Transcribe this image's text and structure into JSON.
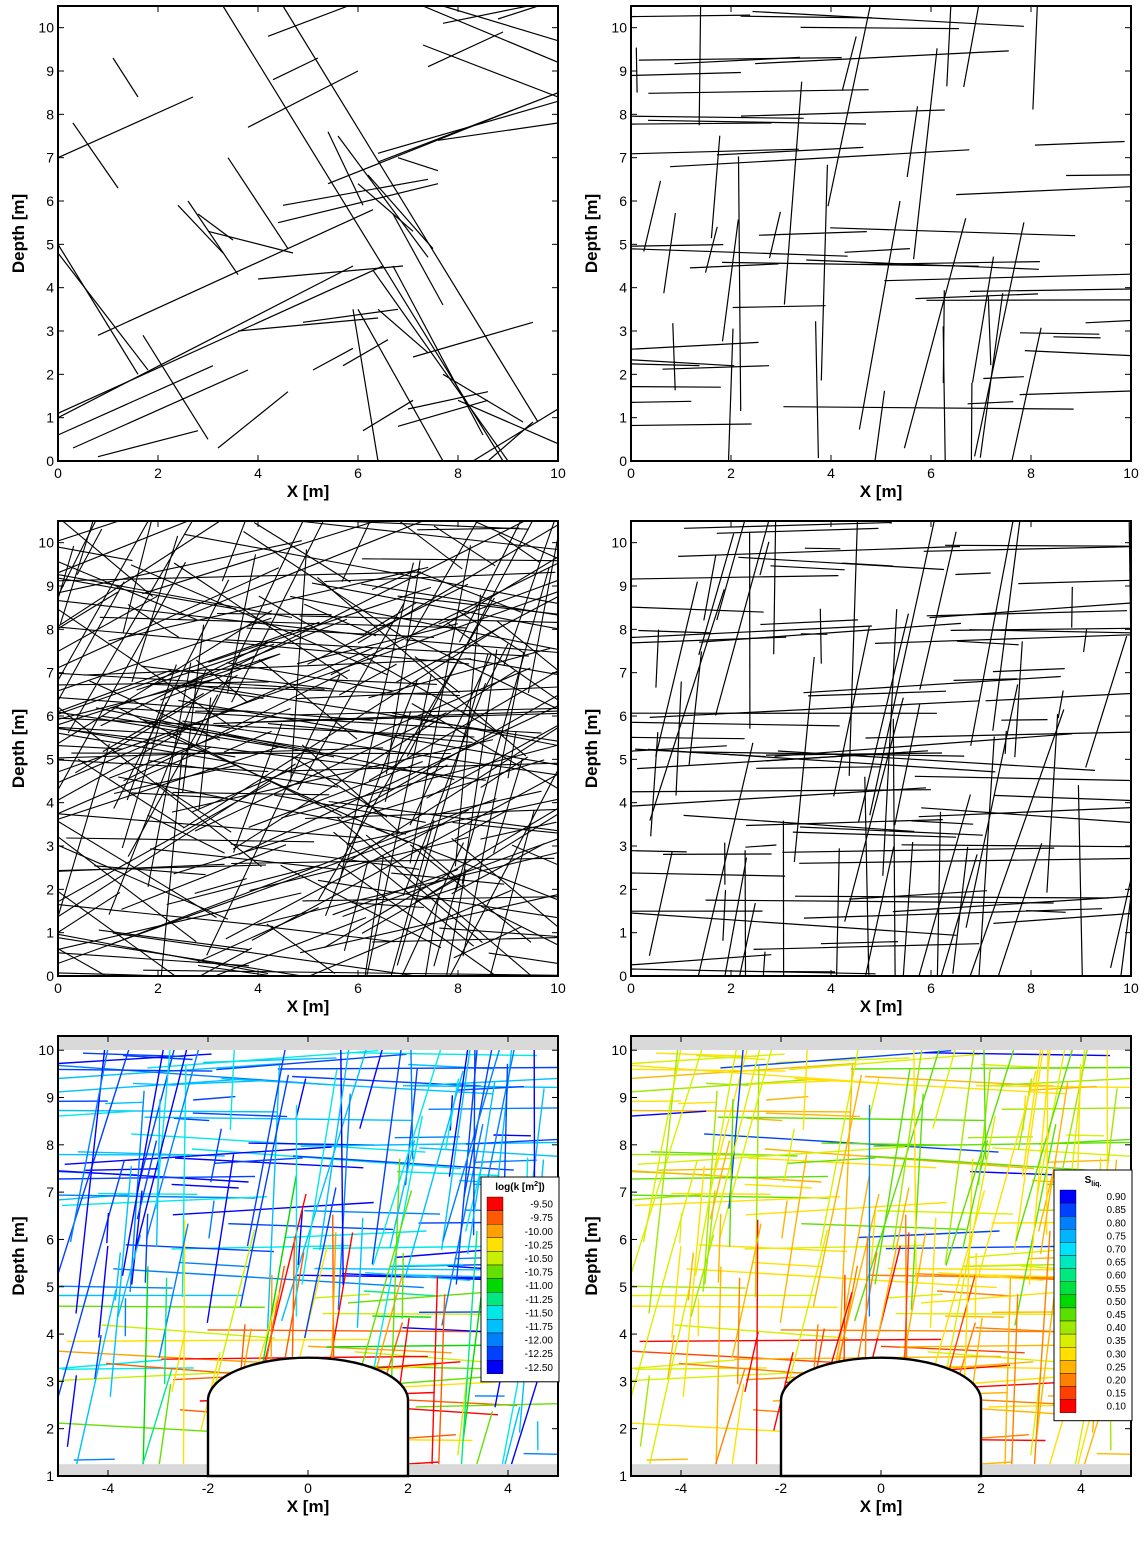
{
  "chart_data": [
    {
      "id": "p1",
      "type": "line",
      "xlabel": "X [m]",
      "ylabel": "Depth [m]",
      "xlim": [
        0,
        10
      ],
      "ylim": [
        0,
        10.5
      ],
      "xticks": [
        0,
        2,
        4,
        6,
        8,
        10
      ],
      "yticks": [
        0,
        1,
        2,
        3,
        4,
        5,
        6,
        7,
        8,
        9,
        10
      ],
      "segments": [
        [
          3.3,
          10.5,
          8.9,
          0
        ],
        [
          4.5,
          10.5,
          9.6,
          0.9
        ],
        [
          4.2,
          9.8,
          5.8,
          10.5
        ],
        [
          3.8,
          10.5,
          4.4,
          10.5
        ],
        [
          5.9,
          10.5,
          7.3,
          10.5
        ],
        [
          7.3,
          10.5,
          10,
          9.2
        ],
        [
          7.7,
          10.5,
          10,
          9.7
        ],
        [
          0,
          7,
          2.7,
          8.4
        ],
        [
          1.1,
          9.3,
          1.6,
          8.4
        ],
        [
          0.3,
          7.8,
          1.2,
          6.3
        ],
        [
          3.8,
          7.7,
          6,
          9
        ],
        [
          4.3,
          8.8,
          5.2,
          9.3
        ],
        [
          7.4,
          9.1,
          8.9,
          9.9
        ],
        [
          7.3,
          9.6,
          10,
          8.4
        ],
        [
          7.7,
          10.1,
          9.4,
          10.5
        ],
        [
          5.4,
          7.6,
          6.1,
          5.9
        ],
        [
          6.4,
          7.1,
          10,
          8.3
        ],
        [
          6.4,
          6.9,
          10,
          8.5
        ],
        [
          5.4,
          6.4,
          9.1,
          8.1
        ],
        [
          6.8,
          7,
          7.6,
          6.7
        ],
        [
          7.6,
          7.4,
          10,
          7.8
        ],
        [
          4.4,
          5.5,
          7.6,
          6.4
        ],
        [
          4.5,
          5.9,
          7.4,
          6.5
        ],
        [
          6,
          6.4,
          7.1,
          5.3
        ],
        [
          6.2,
          6.6,
          7.5,
          4.9
        ],
        [
          5.6,
          7.5,
          7.4,
          4.7
        ],
        [
          3.4,
          7,
          4.6,
          4.9
        ],
        [
          6.7,
          5.7,
          7.7,
          3.6
        ],
        [
          2.4,
          5.9,
          3.3,
          4.8
        ],
        [
          2.6,
          6,
          3.6,
          4.3
        ],
        [
          2.8,
          5.7,
          3.5,
          5.1
        ],
        [
          0.8,
          2.9,
          6.3,
          5.8
        ],
        [
          3,
          5.3,
          4.7,
          4.8
        ],
        [
          0,
          5,
          1.6,
          2
        ],
        [
          0,
          4.8,
          1.8,
          2.1
        ],
        [
          0,
          1,
          5.9,
          4.5
        ],
        [
          0,
          1.1,
          6.5,
          4.5
        ],
        [
          0,
          0.6,
          3.1,
          2.2
        ],
        [
          0.3,
          0.3,
          3.8,
          2.1
        ],
        [
          3.6,
          3,
          6.4,
          3.3
        ],
        [
          6.3,
          4.4,
          9,
          0
        ],
        [
          6.7,
          4.5,
          8.5,
          0.6
        ],
        [
          6,
          3.5,
          7.7,
          0
        ],
        [
          5.9,
          3.5,
          6.4,
          0
        ],
        [
          4,
          4.2,
          6.9,
          4.5
        ],
        [
          6.4,
          3.5,
          7.4,
          2.5
        ],
        [
          5.1,
          2.1,
          5.9,
          2.6
        ],
        [
          5.7,
          2.2,
          6.6,
          2.8
        ],
        [
          3.2,
          0.3,
          4.6,
          1.6
        ],
        [
          6.1,
          0.7,
          7.1,
          1.4
        ],
        [
          7,
          1.2,
          8.6,
          1.6
        ],
        [
          8,
          1.4,
          10,
          0.4
        ],
        [
          6.8,
          0.8,
          8.6,
          1.4
        ],
        [
          7.7,
          2,
          9.3,
          0.9
        ],
        [
          7.1,
          2.4,
          9.5,
          3.2
        ],
        [
          1.7,
          2.9,
          3,
          0.5
        ],
        [
          8.6,
          0,
          9.5,
          0.9
        ],
        [
          4.9,
          3.2,
          6.8,
          3.5
        ],
        [
          8.3,
          0,
          10,
          1.2
        ],
        [
          0.8,
          0.1,
          2.8,
          0.7
        ],
        [
          8.8,
          10.2,
          9.6,
          10.5
        ]
      ]
    },
    {
      "id": "p2",
      "type": "line",
      "seed": 201,
      "xlabel": "X [m]",
      "ylabel": "Depth [m]",
      "xlim": [
        0,
        10
      ],
      "ylim": [
        0,
        10.5
      ],
      "xticks": [
        0,
        2,
        4,
        6,
        8,
        10
      ],
      "yticks": [
        0,
        1,
        2,
        3,
        4,
        5,
        6,
        7,
        8,
        9,
        10
      ]
    },
    {
      "id": "p3",
      "type": "line",
      "seed": 303,
      "xlabel": "X [m]",
      "ylabel": "Depth [m]",
      "xlim": [
        0,
        10
      ],
      "ylim": [
        0,
        10.5
      ],
      "xticks": [
        0,
        2,
        4,
        6,
        8,
        10
      ],
      "yticks": [
        0,
        1,
        2,
        3,
        4,
        5,
        6,
        7,
        8,
        9,
        10
      ]
    },
    {
      "id": "p4",
      "type": "line",
      "seed": 404,
      "xlabel": "X [m]",
      "ylabel": "Depth [m]",
      "xlim": [
        0,
        10
      ],
      "ylim": [
        0,
        10.5
      ],
      "xticks": [
        0,
        2,
        4,
        6,
        8,
        10
      ],
      "yticks": [
        0,
        1,
        2,
        3,
        4,
        5,
        6,
        7,
        8,
        9,
        10
      ]
    },
    {
      "id": "p5",
      "type": "line",
      "seed": 505,
      "colored": "log_k",
      "xlabel": "X [m]",
      "ylabel": "Depth [m]",
      "xlim": [
        -5,
        5
      ],
      "ylim": [
        1,
        10.3
      ],
      "xticks": [
        -4,
        -2,
        0,
        2,
        4
      ],
      "xticklabels": [
        "-4",
        "-2",
        "0",
        "2",
        "4"
      ],
      "yticks": [
        1,
        2,
        3,
        4,
        5,
        6,
        7,
        8,
        9,
        10
      ],
      "tunnel": {
        "x_left": -2,
        "x_right": 2,
        "wall_top": 2.6,
        "crown": 3.5
      },
      "legend": {
        "title_main": "log(k [m",
        "title_sup": "2",
        "title_end": "])",
        "levels": [
          "-9.50",
          "-9.75",
          "-10.00",
          "-10.25",
          "-10.50",
          "-10.75",
          "-11.00",
          "-11.25",
          "-11.50",
          "-11.75",
          "-12.00",
          "-12.25",
          "-12.50"
        ],
        "colors": [
          "#ff0000",
          "#ff5a00",
          "#ffa000",
          "#ffe000",
          "#c8f000",
          "#64e000",
          "#00d800",
          "#00e880",
          "#00e8e8",
          "#00c0ff",
          "#0080ff",
          "#0040ff",
          "#0000ff"
        ]
      }
    },
    {
      "id": "p6",
      "type": "line",
      "seed": 505,
      "colored": "s_liq",
      "xlabel": "X [m]",
      "ylabel": "Depth [m]",
      "xlim": [
        -5,
        5
      ],
      "ylim": [
        1,
        10.3
      ],
      "xticks": [
        -4,
        -2,
        0,
        2,
        4
      ],
      "xticklabels": [
        "-4",
        "-2",
        "0",
        "2",
        "4"
      ],
      "yticks": [
        1,
        2,
        3,
        4,
        5,
        6,
        7,
        8,
        9,
        10
      ],
      "tunnel": {
        "x_left": -2,
        "x_right": 2,
        "wall_top": 2.6,
        "crown": 3.5
      },
      "legend": {
        "title_main": "S",
        "title_sub": "liq.",
        "levels": [
          "0.90",
          "0.85",
          "0.80",
          "0.75",
          "0.70",
          "0.65",
          "0.60",
          "0.55",
          "0.50",
          "0.45",
          "0.40",
          "0.35",
          "0.30",
          "0.25",
          "0.20",
          "0.15",
          "0.10"
        ],
        "colors": [
          "#0000ff",
          "#0040ff",
          "#0080ff",
          "#00b4ff",
          "#00e0ff",
          "#00e8c0",
          "#00e880",
          "#00e040",
          "#00d800",
          "#5ae000",
          "#a0e800",
          "#d8f000",
          "#ffe000",
          "#ffb400",
          "#ff8000",
          "#ff4000",
          "#ff0000"
        ]
      }
    }
  ]
}
